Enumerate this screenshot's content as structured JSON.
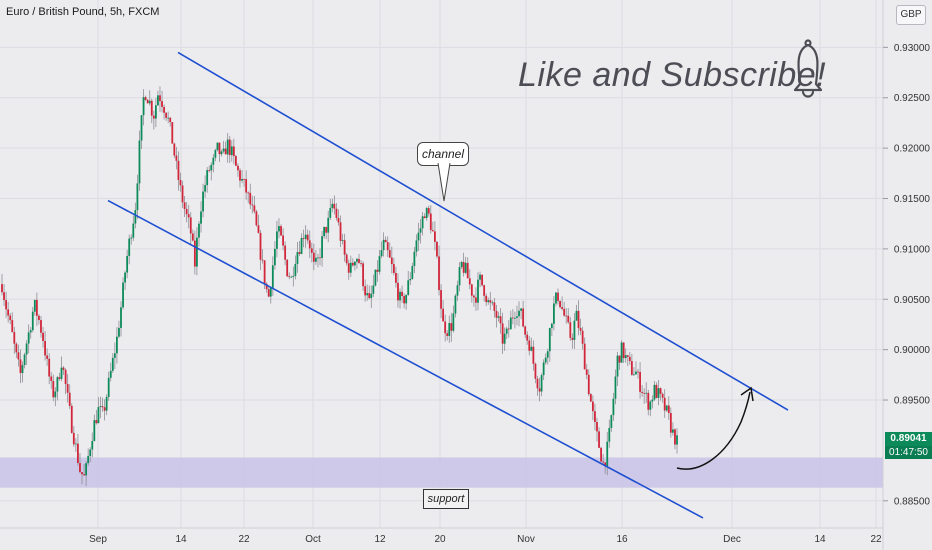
{
  "header": {
    "title": "Euro / British Pound, 5h, FXCM",
    "currency": "GBP"
  },
  "annotations": {
    "promo_text": "Like and Subscribe!",
    "channel_label": "channel",
    "support_label": "support"
  },
  "price_tag": {
    "price": "0.89041",
    "countdown": "01:47:50"
  },
  "colors": {
    "up": "#0c8a5a",
    "down": "#d1253a",
    "channel": "#1f4fd1",
    "support_zone": "#c9c3e6",
    "background": "#ececef"
  },
  "icons": {
    "bell": "bell-icon",
    "arrow": "curved-arrow-icon"
  },
  "chart_data": {
    "type": "candlestick",
    "instrument": "EUR/GBP",
    "timeframe": "5h",
    "xlabel": "",
    "ylabel": "",
    "x_tick_labels": [
      "Sep",
      "14",
      "22",
      "Oct",
      "12",
      "20",
      "Nov",
      "16",
      "Dec",
      "14",
      "22"
    ],
    "y_tick_labels": [
      "0.93000",
      "0.92500",
      "0.92000",
      "0.91500",
      "0.91000",
      "0.90500",
      "0.90000",
      "0.89500",
      "0.88500"
    ],
    "ylim": [
      0.8823,
      0.9347
    ],
    "grid": true,
    "last_price": 0.89041,
    "channel_upper": [
      [
        0.9295,
        "Sep 13"
      ],
      [
        0.894,
        "Dec 10"
      ]
    ],
    "channel_lower": [
      [
        0.9148,
        "Aug 26"
      ],
      [
        0.8833,
        "Nov 26"
      ]
    ],
    "support_zone": [
      0.8863,
      0.8893
    ],
    "path_points": [
      0.9065,
      0.904,
      0.902,
      0.8995,
      0.8975,
      0.9,
      0.902,
      0.9045,
      0.903,
      0.901,
      0.898,
      0.8955,
      0.8965,
      0.899,
      0.896,
      0.893,
      0.8905,
      0.888,
      0.8872,
      0.89,
      0.8925,
      0.894,
      0.8935,
      0.896,
      0.8985,
      0.901,
      0.9045,
      0.9085,
      0.9115,
      0.914,
      0.9205,
      0.9258,
      0.9248,
      0.9232,
      0.9255,
      0.9245,
      0.9232,
      0.921,
      0.918,
      0.9155,
      0.9135,
      0.912,
      0.9085,
      0.9135,
      0.916,
      0.9178,
      0.9185,
      0.92,
      0.9188,
      0.9205,
      0.9195,
      0.918,
      0.917,
      0.916,
      0.9145,
      0.913,
      0.9105,
      0.9075,
      0.905,
      0.9085,
      0.912,
      0.9105,
      0.908,
      0.907,
      0.9095,
      0.9105,
      0.912,
      0.9105,
      0.908,
      0.909,
      0.9115,
      0.9125,
      0.9145,
      0.913,
      0.9105,
      0.9085,
      0.908,
      0.9095,
      0.9085,
      0.906,
      0.9045,
      0.9065,
      0.9085,
      0.9105,
      0.9095,
      0.908,
      0.906,
      0.9045,
      0.9055,
      0.9075,
      0.9105,
      0.9118,
      0.9138,
      0.9132,
      0.9112,
      0.9075,
      0.9025,
      0.902,
      0.9025,
      0.9055,
      0.9085,
      0.9078,
      0.9062,
      0.905,
      0.907,
      0.906,
      0.9045,
      0.904,
      0.903,
      0.901,
      0.9015,
      0.9032,
      0.9042,
      0.9035,
      0.9015,
      0.9005,
      0.898,
      0.8962,
      0.8985,
      0.901,
      0.904,
      0.9055,
      0.904,
      0.9025,
      0.901,
      0.9035,
      0.9015,
      0.8985,
      0.8955,
      0.8925,
      0.8905,
      0.8885,
      0.8905,
      0.8945,
      0.899,
      0.9,
      0.899,
      0.898,
      0.8978,
      0.8965,
      0.8955,
      0.8945,
      0.896,
      0.8955,
      0.8945,
      0.8935,
      0.8918,
      0.8908
    ]
  }
}
